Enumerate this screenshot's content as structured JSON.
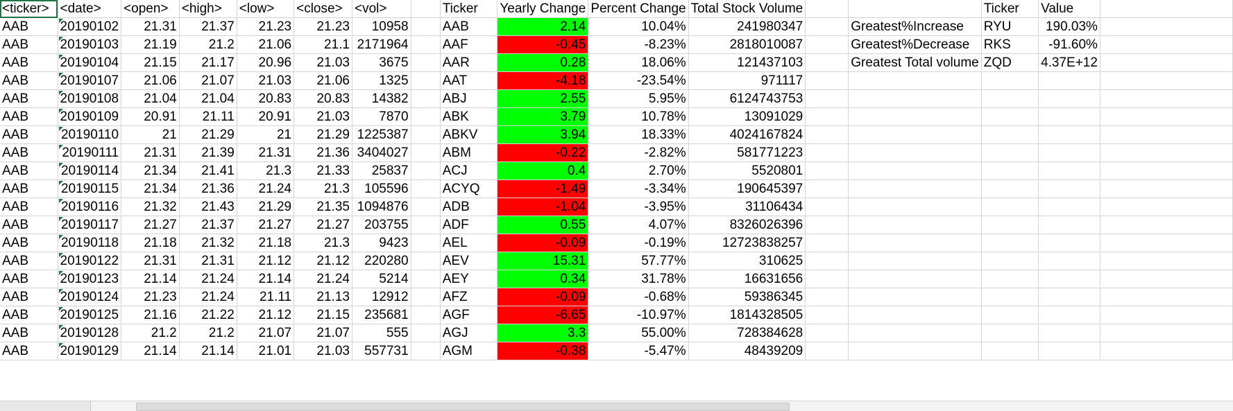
{
  "raw_headers": [
    "<ticker>",
    "<date>",
    "<open>",
    "<high>",
    "<low>",
    "<close>",
    "<vol>"
  ],
  "raw_rows": [
    [
      "AAB",
      "20190102",
      "21.31",
      "21.37",
      "21.23",
      "21.23",
      "10958"
    ],
    [
      "AAB",
      "20190103",
      "21.19",
      "21.2",
      "21.06",
      "21.1",
      "2171964"
    ],
    [
      "AAB",
      "20190104",
      "21.15",
      "21.17",
      "20.96",
      "21.03",
      "3675"
    ],
    [
      "AAB",
      "20190107",
      "21.06",
      "21.07",
      "21.03",
      "21.06",
      "1325"
    ],
    [
      "AAB",
      "20190108",
      "21.04",
      "21.04",
      "20.83",
      "20.83",
      "14382"
    ],
    [
      "AAB",
      "20190109",
      "20.91",
      "21.11",
      "20.91",
      "21.03",
      "7870"
    ],
    [
      "AAB",
      "20190110",
      "21",
      "21.29",
      "21",
      "21.29",
      "1225387"
    ],
    [
      "AAB",
      "20190111",
      "21.31",
      "21.39",
      "21.31",
      "21.36",
      "3404027"
    ],
    [
      "AAB",
      "20190114",
      "21.34",
      "21.41",
      "21.3",
      "21.33",
      "25837"
    ],
    [
      "AAB",
      "20190115",
      "21.34",
      "21.36",
      "21.24",
      "21.3",
      "105596"
    ],
    [
      "AAB",
      "20190116",
      "21.32",
      "21.43",
      "21.29",
      "21.35",
      "1094876"
    ],
    [
      "AAB",
      "20190117",
      "21.27",
      "21.37",
      "21.27",
      "21.27",
      "203755"
    ],
    [
      "AAB",
      "20190118",
      "21.18",
      "21.32",
      "21.18",
      "21.3",
      "9423"
    ],
    [
      "AAB",
      "20190122",
      "21.31",
      "21.31",
      "21.12",
      "21.12",
      "220280"
    ],
    [
      "AAB",
      "20190123",
      "21.14",
      "21.24",
      "21.14",
      "21.24",
      "5214"
    ],
    [
      "AAB",
      "20190124",
      "21.23",
      "21.24",
      "21.11",
      "21.13",
      "12912"
    ],
    [
      "AAB",
      "20190125",
      "21.16",
      "21.22",
      "21.12",
      "21.15",
      "235681"
    ],
    [
      "AAB",
      "20190128",
      "21.2",
      "21.2",
      "21.07",
      "21.07",
      "555"
    ],
    [
      "AAB",
      "20190129",
      "21.14",
      "21.14",
      "21.01",
      "21.03",
      "557731"
    ]
  ],
  "summary_headers": [
    "Ticker",
    "Yearly Change",
    "Percent Change",
    "Total Stock Volume"
  ],
  "summary_rows": [
    [
      "AAB",
      "2.14",
      "10.04%",
      "241980347"
    ],
    [
      "AAF",
      "-0.45",
      "-8.23%",
      "2818010087"
    ],
    [
      "AAR",
      "0.28",
      "18.06%",
      "121437103"
    ],
    [
      "AAT",
      "-4.18",
      "-23.54%",
      "971117"
    ],
    [
      "ABJ",
      "2.55",
      "5.95%",
      "6124743753"
    ],
    [
      "ABK",
      "3.79",
      "10.78%",
      "13091029"
    ],
    [
      "ABKV",
      "3.94",
      "18.33%",
      "4024167824"
    ],
    [
      "ABM",
      "-0.22",
      "-2.82%",
      "581771223"
    ],
    [
      "ACJ",
      "0.4",
      "2.70%",
      "5520801"
    ],
    [
      "ACYQ",
      "-1.49",
      "-3.34%",
      "190645397"
    ],
    [
      "ADB",
      "-1.04",
      "-3.95%",
      "31106434"
    ],
    [
      "ADF",
      "0.55",
      "4.07%",
      "8326026396"
    ],
    [
      "AEL",
      "-0.09",
      "-0.19%",
      "12723838257"
    ],
    [
      "AEV",
      "15.31",
      "57.77%",
      "310625"
    ],
    [
      "AEY",
      "0.34",
      "31.78%",
      "16631656"
    ],
    [
      "AFZ",
      "-0.09",
      "-0.68%",
      "59386345"
    ],
    [
      "AGF",
      "-6.65",
      "-10.97%",
      "1814328505"
    ],
    [
      "AGJ",
      "3.3",
      "55.00%",
      "728384628"
    ],
    [
      "AGM",
      "-0.38",
      "-5.47%",
      "48439209"
    ]
  ],
  "greatest_headers": [
    "Ticker",
    "Value"
  ],
  "greatest_rows": [
    [
      "Greatest%Increase",
      "RYU",
      "190.03%"
    ],
    [
      "Greatest%Decrease",
      "RKS",
      "-91.60%"
    ],
    [
      "Greatest Total volume",
      "ZQD",
      "4.37E+12"
    ]
  ],
  "colors": {
    "positive": "#00ff00",
    "negative": "#ff0000",
    "selection": "#217346"
  }
}
